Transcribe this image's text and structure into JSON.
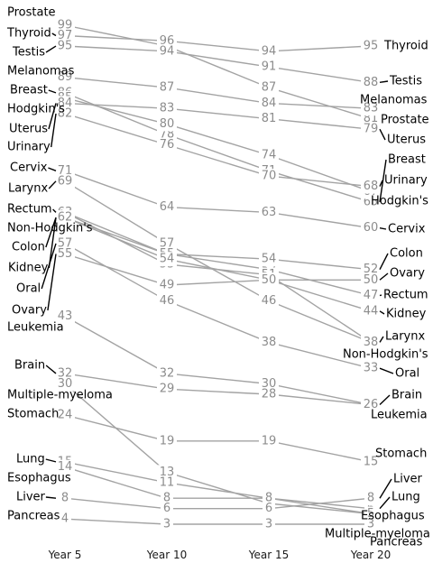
{
  "chart_data": {
    "type": "line",
    "title": "",
    "xlabel": "",
    "ylabel": "",
    "x": [
      "Year 5",
      "Year 10",
      "Year 15",
      "Year 20"
    ],
    "ylim": [
      3,
      99
    ],
    "series": [
      {
        "name": "Prostate",
        "values": [
          99,
          95,
          87,
          81
        ]
      },
      {
        "name": "Thyroid",
        "values": [
          97,
          96,
          94,
          95
        ]
      },
      {
        "name": "Testis",
        "values": [
          95,
          94,
          91,
          88
        ]
      },
      {
        "name": "Melanomas",
        "values": [
          89,
          87,
          84,
          83
        ]
      },
      {
        "name": "Breast",
        "values": [
          86,
          78,
          71,
          65
        ]
      },
      {
        "name": "Hodgkin's",
        "values": [
          85,
          80,
          74,
          67
        ]
      },
      {
        "name": "Uterus",
        "values": [
          84,
          83,
          81,
          79
        ]
      },
      {
        "name": "Urinary",
        "values": [
          82,
          76,
          70,
          68
        ]
      },
      {
        "name": "Cervix",
        "values": [
          71,
          64,
          63,
          60
        ]
      },
      {
        "name": "Larynx",
        "values": [
          69,
          57,
          46,
          38
        ]
      },
      {
        "name": "Rectum",
        "values": [
          63,
          55,
          52,
          47
        ]
      },
      {
        "name": "Non-Hodgkin's",
        "values": [
          63,
          53,
          51,
          38
        ]
      },
      {
        "name": "Colon",
        "values": [
          62,
          55,
          54,
          52
        ]
      },
      {
        "name": "Kidney",
        "values": [
          62,
          54,
          50,
          44
        ]
      },
      {
        "name": "Oral",
        "values": [
          57,
          46,
          38,
          33
        ]
      },
      {
        "name": "Ovary",
        "values": [
          55,
          49,
          50,
          50
        ]
      },
      {
        "name": "Leukemia",
        "values": [
          43,
          32,
          30,
          26
        ]
      },
      {
        "name": "Brain",
        "values": [
          32,
          29,
          28,
          26
        ]
      },
      {
        "name": "Multiple-myeloma",
        "values": [
          30,
          13,
          7,
          5
        ]
      },
      {
        "name": "Stomach",
        "values": [
          24,
          19,
          19,
          15
        ]
      },
      {
        "name": "Lung",
        "values": [
          15,
          11,
          8,
          6
        ]
      },
      {
        "name": "Esophagus",
        "values": [
          14,
          8,
          8,
          5
        ]
      },
      {
        "name": "Liver",
        "values": [
          8,
          6,
          6,
          8
        ]
      },
      {
        "name": "Pancreas",
        "values": [
          4,
          3,
          3,
          3
        ]
      }
    ],
    "left_labels": [
      {
        "name": "Prostate",
        "value": 99,
        "y": 14,
        "x": 8,
        "lead": true
      },
      {
        "name": "Thyroid",
        "value": 97,
        "y": 37,
        "x": 8,
        "lead": true
      },
      {
        "name": "Testis",
        "value": 95,
        "y": 58,
        "x": 14,
        "lead": true
      },
      {
        "name": "Melanomas",
        "value": 89,
        "y": 79,
        "x": 8,
        "lead": true
      },
      {
        "name": "Breast",
        "value": 86,
        "y": 100,
        "x": 11,
        "lead": true
      },
      {
        "name": "Hodgkin's",
        "value": 85,
        "y": 121,
        "x": 8,
        "lead": true
      },
      {
        "name": "Uterus",
        "value": 84,
        "y": 143,
        "x": 10,
        "lead": true
      },
      {
        "name": "Urinary",
        "value": 82,
        "y": 163,
        "x": 8,
        "lead": true
      },
      {
        "name": "Cervix",
        "value": 71,
        "y": 186,
        "x": 11,
        "lead": true
      },
      {
        "name": "Larynx",
        "value": 69,
        "y": 209,
        "x": 9,
        "lead": true
      },
      {
        "name": "Rectum",
        "value": 63,
        "y": 232,
        "x": 8,
        "lead": true
      },
      {
        "name": "Non-Hodgkin's",
        "value": 63,
        "y": 253,
        "x": 8,
        "lead": true
      },
      {
        "name": "Colon",
        "value": 62,
        "y": 274,
        "x": 13,
        "lead": true
      },
      {
        "name": "Kidney",
        "value": 62,
        "y": 297,
        "x": 9,
        "lead": true
      },
      {
        "name": "Oral",
        "value": 57,
        "y": 320,
        "x": 18,
        "lead": true
      },
      {
        "name": "Ovary",
        "value": 55,
        "y": 344,
        "x": 13,
        "lead": true
      },
      {
        "name": "Leukemia",
        "value": 43,
        "y": 363,
        "x": 8,
        "lead": false
      },
      {
        "name": "Brain",
        "value": 32,
        "y": 405,
        "x": 16,
        "lead": true
      },
      {
        "name": "Multiple-myeloma",
        "value": 30,
        "y": 438,
        "x": 8,
        "lead": false
      },
      {
        "name": "Stomach",
        "value": 24,
        "y": 459,
        "x": 8,
        "lead": false
      },
      {
        "name": "Lung",
        "value": 15,
        "y": 509,
        "x": 18,
        "lead": true
      },
      {
        "name": "Esophagus",
        "value": 14,
        "y": 530,
        "x": 8,
        "lead": true
      },
      {
        "name": "Liver",
        "value": 8,
        "y": 551,
        "x": 18,
        "lead": true
      },
      {
        "name": "Pancreas",
        "value": 4,
        "y": 572,
        "x": 8,
        "lead": true
      }
    ],
    "right_labels": [
      {
        "name": "Thyroid",
        "value": 95,
        "y": 51,
        "x": 426,
        "lead": false
      },
      {
        "name": "Testis",
        "value": 88,
        "y": 90,
        "x": 432,
        "lead": true
      },
      {
        "name": "Melanomas",
        "value": 83,
        "y": 111,
        "x": 399,
        "lead": false
      },
      {
        "name": "Prostate",
        "value": 81,
        "y": 133,
        "x": 422,
        "lead": true
      },
      {
        "name": "Uterus",
        "value": 79,
        "y": 155,
        "x": 429,
        "lead": true
      },
      {
        "name": "Breast",
        "value": 65,
        "y": 177,
        "x": 430,
        "lead": true
      },
      {
        "name": "Urinary",
        "value": 68,
        "y": 200,
        "x": 426,
        "lead": true
      },
      {
        "name": "Hodgkin's",
        "value": 67,
        "y": 223,
        "x": 411,
        "lead": true
      },
      {
        "name": "Cervix",
        "value": 60,
        "y": 254,
        "x": 430,
        "lead": true
      },
      {
        "name": "Colon",
        "value": 52,
        "y": 281,
        "x": 432,
        "lead": true
      },
      {
        "name": "Ovary",
        "value": 50,
        "y": 303,
        "x": 432,
        "lead": true
      },
      {
        "name": "Rectum",
        "value": 47,
        "y": 327,
        "x": 425,
        "lead": true
      },
      {
        "name": "Kidney",
        "value": 44,
        "y": 348,
        "x": 428,
        "lead": true
      },
      {
        "name": "Larynx",
        "value": 38,
        "y": 373,
        "x": 427,
        "lead": true
      },
      {
        "name": "Non-Hodgkin's",
        "value": 38,
        "y": 393,
        "x": 380,
        "lead": true
      },
      {
        "name": "Oral",
        "value": 33,
        "y": 414,
        "x": 438,
        "lead": true
      },
      {
        "name": "Brain",
        "value": 26,
        "y": 438,
        "x": 434,
        "lead": true
      },
      {
        "name": "Leukemia",
        "value": 26,
        "y": 460,
        "x": 411,
        "lead": true
      },
      {
        "name": "Stomach",
        "value": 15,
        "y": 503,
        "x": 416,
        "lead": false
      },
      {
        "name": "Liver",
        "value": 8,
        "y": 531,
        "x": 436,
        "lead": true
      },
      {
        "name": "Lung",
        "value": 6,
        "y": 551,
        "x": 434,
        "lead": true
      },
      {
        "name": "Esophagus",
        "value": 5,
        "y": 572,
        "x": 400,
        "lead": true
      },
      {
        "name": "Multiple-myeloma",
        "value": 5,
        "y": 592,
        "x": 360,
        "lead": false
      },
      {
        "name": "Pancreas",
        "value": 3,
        "y": 601,
        "x": 410,
        "lead": false
      }
    ]
  }
}
